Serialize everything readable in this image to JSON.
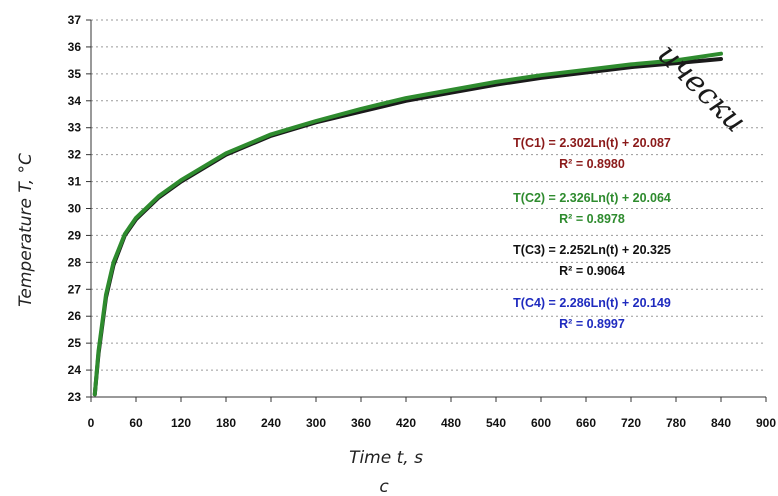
{
  "chart_data": {
    "type": "line",
    "xlabel": "Time t, s",
    "ylabel": "Temperature T, °C",
    "xlim": [
      0,
      900
    ],
    "ylim": [
      23,
      37
    ],
    "xticks": [
      0,
      60,
      120,
      180,
      240,
      300,
      360,
      420,
      480,
      540,
      600,
      660,
      720,
      780,
      840,
      900
    ],
    "yticks": [
      23,
      24,
      25,
      26,
      27,
      28,
      29,
      30,
      31,
      32,
      33,
      34,
      35,
      36,
      37
    ],
    "grid": "horizontal dotted",
    "series": [
      {
        "color": "#1a1a1a",
        "x": [
          5,
          10,
          20,
          30,
          45,
          60,
          90,
          120,
          180,
          240,
          300,
          360,
          420,
          480,
          540,
          600,
          660,
          720,
          780,
          840
        ],
        "y": [
          23.1,
          24.6,
          26.7,
          27.9,
          29.0,
          29.6,
          30.4,
          31.0,
          32.0,
          32.7,
          33.2,
          33.6,
          34.0,
          34.3,
          34.6,
          34.85,
          35.05,
          35.25,
          35.4,
          35.55
        ]
      },
      {
        "color": "#2e8b2e",
        "x": [
          5,
          10,
          20,
          30,
          45,
          60,
          90,
          120,
          180,
          240,
          300,
          360,
          420,
          480,
          540,
          600,
          660,
          720,
          780,
          840
        ],
        "y": [
          23.1,
          24.7,
          26.8,
          28.0,
          29.05,
          29.65,
          30.45,
          31.05,
          32.05,
          32.75,
          33.25,
          33.7,
          34.1,
          34.4,
          34.7,
          34.95,
          35.15,
          35.35,
          35.5,
          35.75
        ]
      }
    ],
    "annotations": [
      {
        "text": "T(C1) = 2.302Ln(t) + 20.087",
        "color": "#8b1a1a"
      },
      {
        "text": "R² = 0.8980",
        "color": "#8b1a1a"
      },
      {
        "text": "T(C2) = 2.326Ln(t) + 20.064",
        "color": "#2e8b2e"
      },
      {
        "text": "R² = 0.8978",
        "color": "#2e8b2e"
      },
      {
        "text": "T(C3) = 2.252Ln(t) + 20.325",
        "color": "#111111"
      },
      {
        "text": "R² = 0.9064",
        "color": "#111111"
      },
      {
        "text": "T(C4) = 2.286Ln(t) + 20.149",
        "color": "#1f2bbf"
      },
      {
        "text": "R² = 0.8997",
        "color": "#1f2bbf"
      }
    ]
  },
  "caption": "c",
  "watermark": "ически"
}
